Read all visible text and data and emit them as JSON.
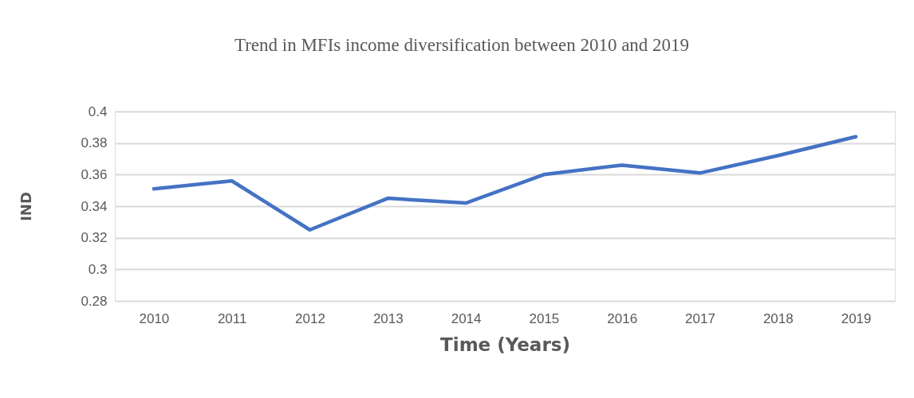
{
  "chart_data": {
    "type": "line",
    "title": "Trend in MFIs income diversification between 2010 and 2019",
    "xlabel": "Time (Years)",
    "ylabel": "IND",
    "categories": [
      "2010",
      "2011",
      "2012",
      "2013",
      "2014",
      "2015",
      "2016",
      "2017",
      "2018",
      "2019"
    ],
    "series": [
      {
        "color": "#4472c4",
        "values": [
          0.351,
          0.356,
          0.325,
          0.345,
          0.342,
          0.36,
          0.366,
          0.361,
          0.372,
          0.384
        ]
      }
    ],
    "ylim": [
      0.28,
      0.4
    ],
    "yticks": [
      0.28,
      0.3,
      0.32,
      0.34,
      0.36,
      0.38,
      0.4
    ],
    "grid": "y",
    "marker": "none",
    "line_style": "solid"
  }
}
